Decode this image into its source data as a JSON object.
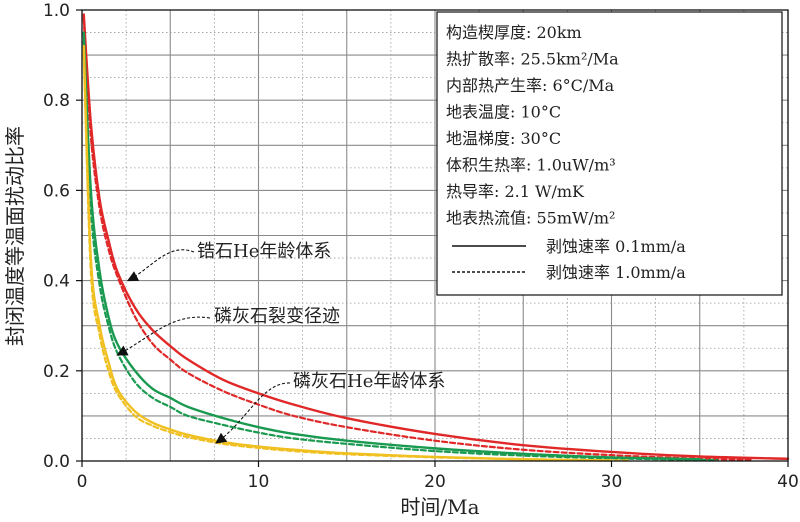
{
  "chart_data": {
    "type": "line",
    "title": "",
    "xlabel": "时间/Ma",
    "ylabel": "封闭温度等温面扰动比率",
    "xlim": [
      0,
      40
    ],
    "ylim": [
      0,
      1.0
    ],
    "x_ticks": [
      "0",
      "10",
      "20",
      "30",
      "40"
    ],
    "y_ticks": [
      "0.0",
      "0.2",
      "0.4",
      "0.6",
      "0.8",
      "1.0"
    ],
    "grid": true,
    "legend_position": "top-right",
    "params": [
      "构造楔厚度: 20km",
      "热扩散率: 25.5km²/Ma",
      "内部热产生率: 6°C/Ma",
      "地表温度: 10°C",
      "地温梯度: 30°C",
      "体积生热率: 1.0uW/m³",
      "热导率: 2.1 W/mK",
      "地表热流值: 55mW/m²"
    ],
    "legend_lines": [
      {
        "style": "solid",
        "label": "剥蚀速率 0.1mm/a"
      },
      {
        "style": "dashed",
        "label": "剥蚀速率 1.0mm/a"
      }
    ],
    "series": [
      {
        "system": "锆石He年龄体系",
        "rate": "0.1mm/a",
        "style": "solid",
        "color": "#e02828",
        "x": [
          0.1,
          0.5,
          1,
          1.5,
          2,
          3,
          4,
          5,
          6,
          8,
          10,
          12,
          15,
          20,
          25,
          30,
          35,
          40
        ],
        "y": [
          0.99,
          0.75,
          0.58,
          0.49,
          0.42,
          0.34,
          0.29,
          0.255,
          0.225,
          0.18,
          0.15,
          0.125,
          0.095,
          0.06,
          0.035,
          0.02,
          0.01,
          0.005
        ]
      },
      {
        "system": "锆石He年龄体系",
        "rate": "1.0mm/a",
        "style": "dashed",
        "color": "#e02828",
        "x": [
          0.1,
          0.5,
          1,
          1.5,
          2,
          3,
          4,
          5,
          6,
          8,
          10,
          12,
          15,
          20,
          25,
          30,
          35,
          38
        ],
        "y": [
          0.98,
          0.72,
          0.56,
          0.47,
          0.41,
          0.32,
          0.26,
          0.225,
          0.195,
          0.155,
          0.125,
          0.1,
          0.075,
          0.045,
          0.025,
          0.013,
          0.005,
          0.003
        ]
      },
      {
        "system": "磷灰石裂变径迹",
        "rate": "0.1mm/a",
        "style": "solid",
        "color": "#1a9a50",
        "x": [
          0.1,
          0.5,
          1,
          1.5,
          2,
          3,
          4,
          5,
          6,
          8,
          10,
          12,
          15,
          20,
          25,
          30,
          35
        ],
        "y": [
          0.95,
          0.6,
          0.42,
          0.32,
          0.26,
          0.2,
          0.16,
          0.14,
          0.12,
          0.095,
          0.075,
          0.06,
          0.045,
          0.028,
          0.016,
          0.008,
          0.004
        ]
      },
      {
        "system": "磷灰石裂变径迹",
        "rate": "1.0mm/a",
        "style": "dashed",
        "color": "#1a9a50",
        "x": [
          0.1,
          0.5,
          1,
          1.5,
          2,
          3,
          4,
          5,
          6,
          8,
          10,
          12,
          15,
          20,
          25,
          30,
          36
        ],
        "y": [
          0.93,
          0.56,
          0.39,
          0.3,
          0.24,
          0.175,
          0.14,
          0.12,
          0.1,
          0.08,
          0.063,
          0.05,
          0.038,
          0.022,
          0.012,
          0.006,
          0.002
        ]
      },
      {
        "system": "磷灰石He年龄体系",
        "rate": "0.1mm/a",
        "style": "solid",
        "color": "#f0c020",
        "x": [
          0.1,
          0.5,
          1,
          1.5,
          2,
          3,
          4,
          5,
          6,
          8,
          10,
          12,
          15,
          20,
          25,
          30
        ],
        "y": [
          0.92,
          0.45,
          0.3,
          0.22,
          0.16,
          0.11,
          0.085,
          0.07,
          0.058,
          0.042,
          0.032,
          0.025,
          0.017,
          0.009,
          0.004,
          0.001
        ]
      },
      {
        "system": "磷灰石He年龄体系",
        "rate": "1.0mm/a",
        "style": "dashed",
        "color": "#f0c020",
        "x": [
          0.1,
          0.5,
          1,
          1.5,
          2,
          3,
          4,
          5,
          6,
          8,
          10,
          12,
          15,
          20,
          25,
          31
        ],
        "y": [
          0.9,
          0.42,
          0.28,
          0.2,
          0.15,
          0.1,
          0.078,
          0.064,
          0.053,
          0.038,
          0.029,
          0.022,
          0.015,
          0.008,
          0.004,
          0.001
        ]
      }
    ],
    "annotations": [
      {
        "text": "锆石He年龄体系",
        "color": "#e02828",
        "target": [
          2.6,
          0.4
        ]
      },
      {
        "text": "磷灰石裂变径迹",
        "color": "#1a9a50",
        "target": [
          2.0,
          0.235
        ]
      },
      {
        "text": "磷灰石He年龄体系",
        "color": "#f0c020",
        "target": [
          7.6,
          0.04
        ]
      }
    ]
  }
}
